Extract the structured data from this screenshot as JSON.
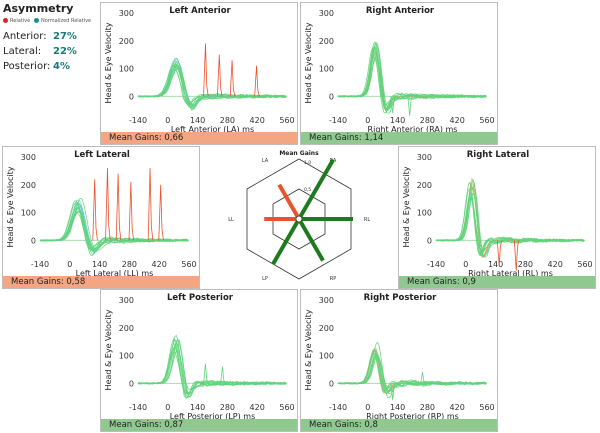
{
  "asymmetry": {
    "title": "Asymmetry",
    "legend_relative": "Relative",
    "legend_normalized": "Normalized Relative",
    "colors": {
      "relative": "#d62728",
      "normalized": "#1f8a8a"
    },
    "rows": [
      {
        "label": "Anterior:",
        "value": "27%"
      },
      {
        "label": "Lateral:",
        "value": "22%"
      },
      {
        "label": "Posterior:",
        "value": "4%"
      }
    ]
  },
  "axis": {
    "ylabel": "Head & Eye Velocity",
    "yticks": [
      "300",
      "200",
      "100",
      "0"
    ],
    "xticks": [
      "-140",
      "0",
      "140",
      "280",
      "420",
      "560"
    ]
  },
  "panels": {
    "la": {
      "title": "Left Anterior",
      "xlabel": "Left Anterior (LA) ms",
      "footer": "Mean Gains: 0,66",
      "footer_color": "#f4a582"
    },
    "ra": {
      "title": "Right Anterior",
      "xlabel": "Right Anterior (RA) ms",
      "footer": "Mean Gains: 1,14",
      "footer_color": "#8fc98f"
    },
    "ll": {
      "title": "Left Lateral",
      "xlabel": "Left Lateral (LL) ms",
      "footer": "Mean Gains: 0,58",
      "footer_color": "#f4a582"
    },
    "rl": {
      "title": "Right Lateral",
      "xlabel": "Right Lateral (RL) ms",
      "footer": "Mean Gains: 0,9",
      "footer_color": "#8fc98f"
    },
    "lp": {
      "title": "Left Posterior",
      "xlabel": "Left Posterior (LP) ms",
      "footer": "Mean Gains: 0,87",
      "footer_color": "#8fc98f"
    },
    "rp": {
      "title": "Right Posterior",
      "xlabel": "Right Posterior (RP) ms",
      "footer": "Mean Gains: 0,8",
      "footer_color": "#8fc98f"
    }
  },
  "hexplot": {
    "title": "Mean Gains",
    "axis_labels": {
      "LA": "LA",
      "RA": "RA",
      "LL": "LL",
      "RL": "RL",
      "LP": "LP",
      "RP": "RP"
    },
    "ring_labels": [
      "0,5",
      "1,0"
    ],
    "values": {
      "LA": 0.66,
      "RA": 1.14,
      "LL": 0.58,
      "RL": 0.9,
      "LP": 0.87,
      "RP": 0.8
    },
    "colors": {
      "low": "#e8532c",
      "normal": "#1e7a1e"
    }
  },
  "colors": {
    "head": "#7ec8e3",
    "eye": "#5fd47a",
    "saccade": "#e8532c"
  }
}
